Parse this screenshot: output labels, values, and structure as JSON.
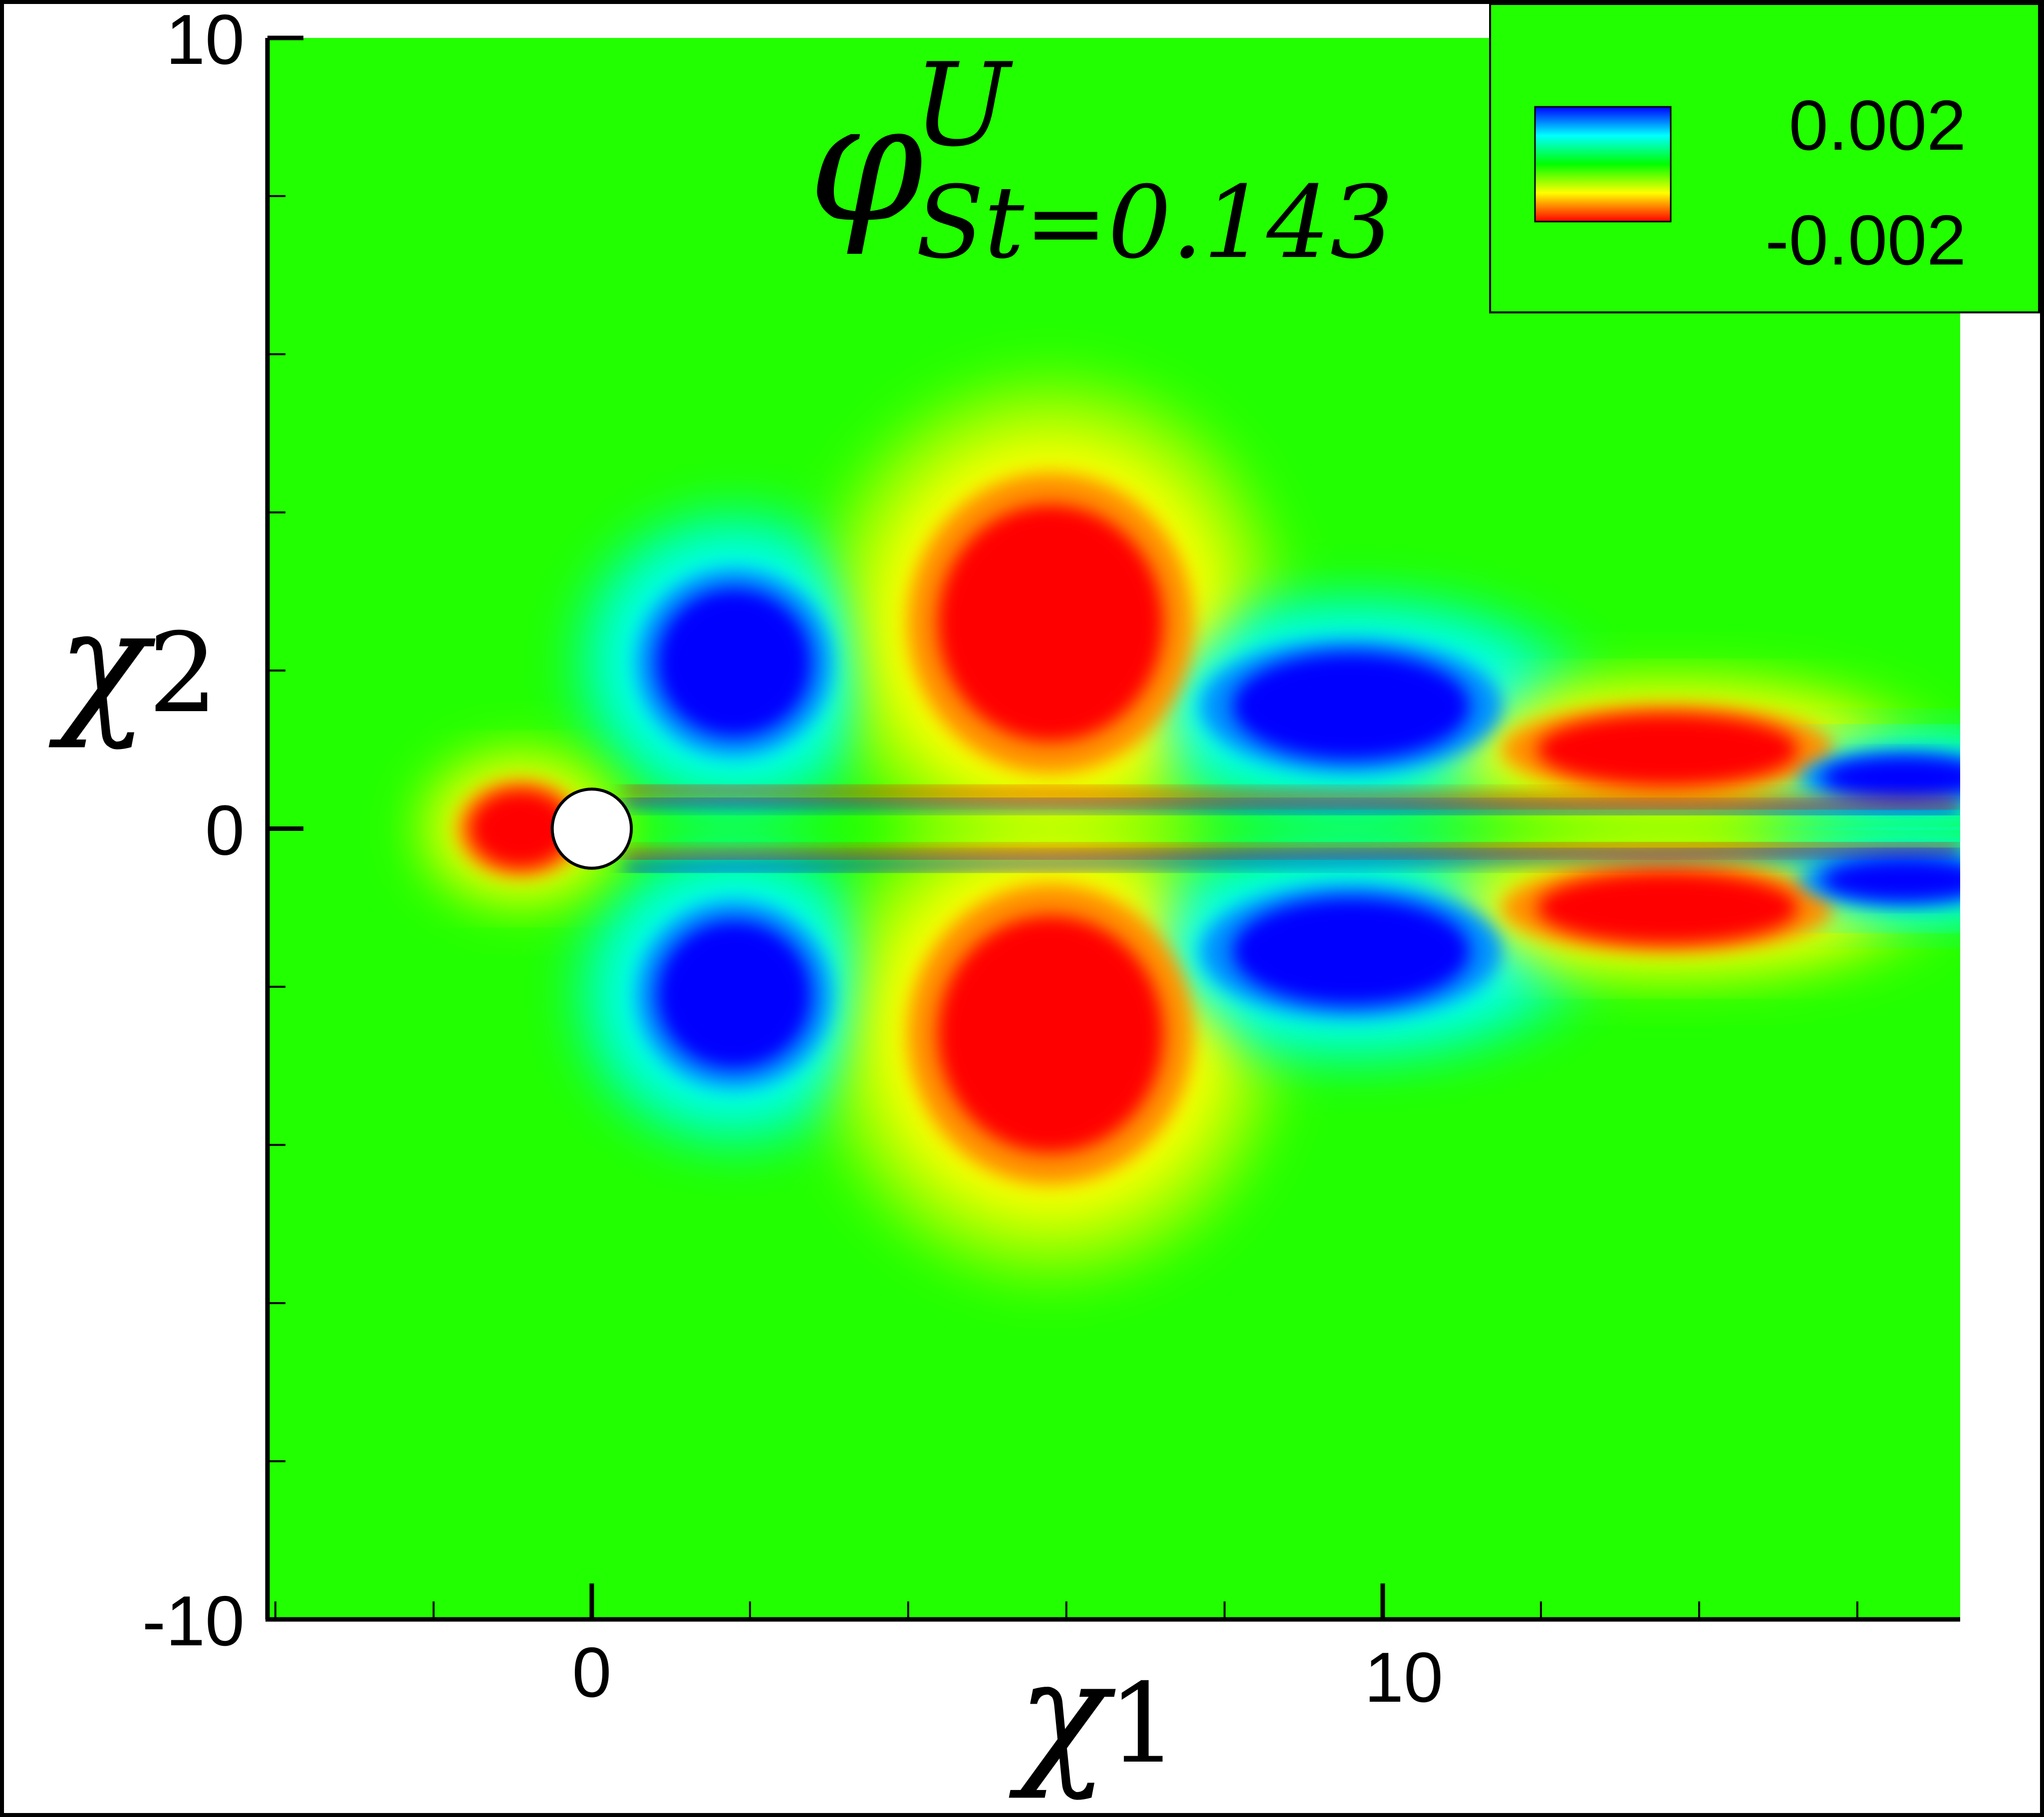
{
  "chart_data": {
    "type": "heatmap",
    "title": {
      "symbol": "φ",
      "superscript": "U",
      "subscript": "St=0.143"
    },
    "xlabel": {
      "symbol": "χ",
      "index": "1"
    },
    "ylabel": {
      "symbol": "χ",
      "index": "2"
    },
    "xlim": [
      -4.1,
      17.3
    ],
    "ylim": [
      -10,
      10
    ],
    "x_tick_labels": [
      {
        "value": 0,
        "label": "0"
      },
      {
        "value": 10,
        "label": "10"
      }
    ],
    "y_tick_labels": [
      {
        "value": 10,
        "label": "10"
      },
      {
        "value": 0,
        "label": "0"
      },
      {
        "value": -10,
        "label": "-10"
      }
    ],
    "x_minor_step": 2,
    "y_minor_step": 2,
    "colorbar": {
      "max_label": "0.002",
      "min_label": "-0.002",
      "max": 0.002,
      "min": -0.002,
      "colormap": "jet-reversed",
      "legend_position": "top-right"
    },
    "cylinder": {
      "center": [
        0,
        0
      ],
      "radius": 0.5
    },
    "mode_pattern": "antisymmetric streamwise velocity mode of cylinder wake",
    "colors": {
      "positive": "#0000ff",
      "negative": "#ff0000",
      "zero": "#00ff00",
      "frame": "#000000"
    }
  }
}
